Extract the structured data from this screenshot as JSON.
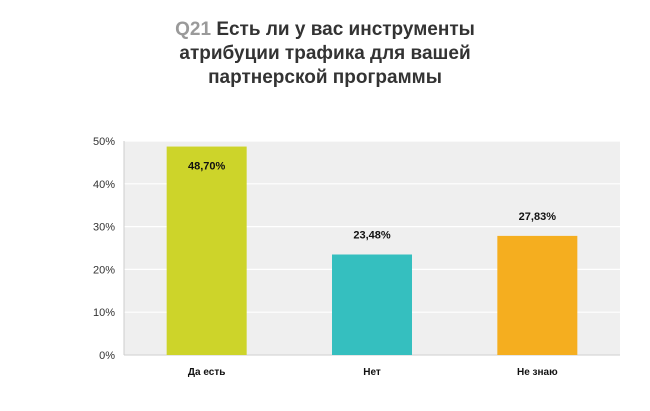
{
  "question_number": "Q21",
  "chart_data": {
    "type": "bar",
    "title_lines": [
      "Есть ли у вас инструменты",
      "атрибуции трафика для вашей",
      "партнерской программы"
    ],
    "categories": [
      "Да есть",
      "Нет",
      "Не знаю"
    ],
    "values": [
      48.7,
      23.48,
      27.83
    ],
    "data_labels": [
      "48,70%",
      "23,48%",
      "27,83%"
    ],
    "colors": [
      "#cdd42a",
      "#35bfbf",
      "#f5ae1f"
    ],
    "ylim": [
      0,
      50
    ],
    "yticks": [
      0,
      10,
      20,
      30,
      40,
      50
    ],
    "ytick_labels": [
      "0%",
      "10%",
      "20%",
      "30%",
      "40%",
      "50%"
    ],
    "grid": true,
    "xlabel": "",
    "ylabel": ""
  }
}
